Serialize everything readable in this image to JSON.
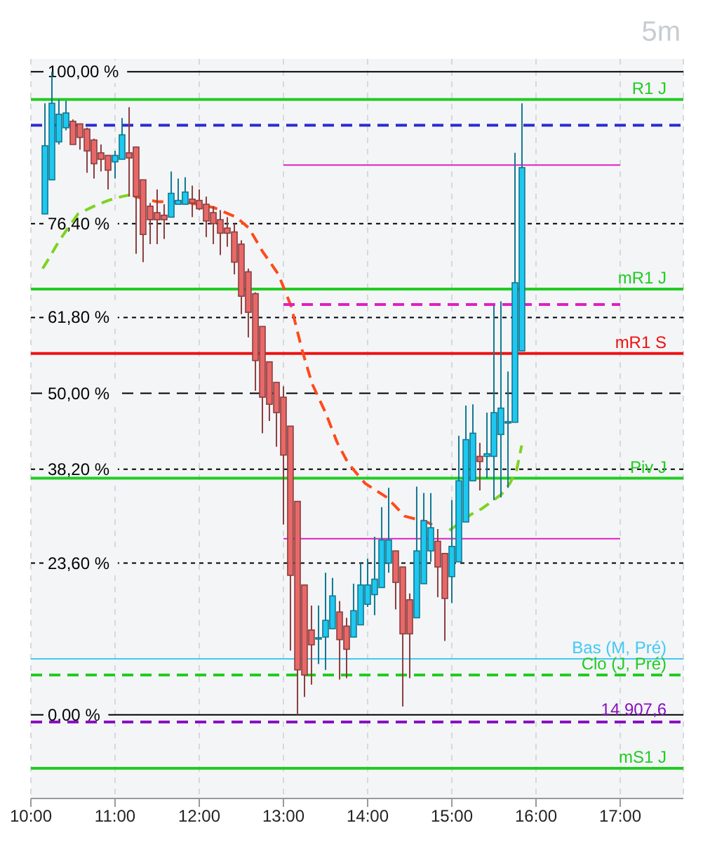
{
  "chart_data": {
    "type": "candlestick",
    "title": "5m",
    "tick_labels": "x",
    "grid": "x",
    "marker": "none",
    "xlim": [
      10,
      17.75
    ],
    "ylim": [
      -13,
      102
    ],
    "xticks": [
      {
        "value": 10,
        "label": "10:00"
      },
      {
        "value": 11,
        "label": "11:00"
      },
      {
        "value": 12,
        "label": "12:00"
      },
      {
        "value": 13,
        "label": "13:00"
      },
      {
        "value": 14,
        "label": "14:00"
      },
      {
        "value": 15,
        "label": "15:00"
      },
      {
        "value": 16,
        "label": "16:00"
      },
      {
        "value": 17,
        "label": "17:00"
      }
    ],
    "series": [
      {
        "type": "line",
        "color": "#7ed321",
        "line_style": "dashed",
        "x": [
          10.14,
          10.22,
          10.33,
          10.44,
          10.56,
          10.75,
          10.92,
          11.08,
          11.19,
          13,
          14.97,
          15.09,
          15.22,
          15.36,
          15.59,
          15.69,
          15.77,
          15.83
        ],
        "values": [
          69.4,
          71.1,
          73.6,
          75.7,
          77.9,
          79.1,
          80,
          80.6,
          80.9,
          null,
          28.7,
          29.8,
          31.1,
          32.1,
          34.3,
          36,
          38.1,
          41.9
        ]
      },
      {
        "type": "line",
        "color": "#ff4a1a",
        "line_style": "dashed",
        "x": [
          11.23,
          11.5,
          11.81,
          12.17,
          12.44,
          12.59,
          12.75,
          12.94,
          13.09,
          13.22,
          13.34,
          13.5,
          13.64,
          13.77,
          13.97,
          14.23,
          14.44,
          14.7,
          14.84
        ],
        "values": [
          80.6,
          79.8,
          79.8,
          78.9,
          77.4,
          75.7,
          72.1,
          68.5,
          63.6,
          56.8,
          51.5,
          47,
          42.3,
          39.1,
          36,
          33.8,
          30.9,
          30,
          29.1
        ]
      },
      {
        "type": "line",
        "color": "#e020c0",
        "line_style": "solid",
        "x": [
          13,
          17
        ],
        "values": [
          85.5,
          85.5
        ]
      },
      {
        "type": "line",
        "color": "#e020c0",
        "line_style": "dashed",
        "x": [
          13,
          17
        ],
        "values": [
          63.8,
          63.8
        ]
      },
      {
        "type": "line",
        "color": "#e020c0",
        "line_style": "solid",
        "x": [
          13,
          17
        ],
        "values": [
          27.4,
          27.4
        ]
      },
      {
        "color": "#1ec8f0",
        "x": [
          10.167,
          10.25,
          10.333,
          10.417,
          11,
          11.083,
          11.667,
          11.75,
          11.833,
          13.417,
          13.5,
          13.583,
          13.833,
          13.917,
          14,
          14.083,
          14.167,
          14.25,
          14.583,
          14.667,
          14.75,
          15,
          15.083,
          15.167,
          15.25,
          15.417,
          15.5,
          15.583,
          15.667,
          15.75,
          15.833
        ],
        "ohlc": [
          [
            77.9,
            95.1,
            77.9,
            88.5
          ],
          [
            83.2,
            100,
            83.2,
            95.1
          ],
          [
            89.1,
            95.7,
            88.7,
            93.4
          ],
          [
            91.3,
            95.5,
            90.9,
            93.6
          ],
          [
            86,
            87.7,
            83.4,
            87
          ],
          [
            86.4,
            92.8,
            86.4,
            90.2
          ],
          [
            77.4,
            84.5,
            77.4,
            81.1
          ],
          [
            79.4,
            83.4,
            79.4,
            80
          ],
          [
            79.4,
            83.6,
            79.4,
            81.3
          ],
          [
            11.8,
            17,
            7.9,
            12
          ],
          [
            12.1,
            22.1,
            7,
            14.7
          ],
          [
            13.4,
            21.3,
            13.4,
            18.5
          ],
          [
            12.1,
            20.4,
            12.1,
            16.2
          ],
          [
            14,
            23.6,
            14,
            20.2
          ],
          [
            17.2,
            24.3,
            16.8,
            20.2
          ],
          [
            18.7,
            27.7,
            15.5,
            21.1
          ],
          [
            19.8,
            32.3,
            19.8,
            27.2
          ],
          [
            23.6,
            35.3,
            22.1,
            27.2
          ],
          [
            15.1,
            35.5,
            15.1,
            25.5
          ],
          [
            20.4,
            34.5,
            20.4,
            30.2
          ],
          [
            25.5,
            34.5,
            23.8,
            29.1
          ],
          [
            21.5,
            33.4,
            17.4,
            26.2
          ],
          [
            23.8,
            43.4,
            23.8,
            36.4
          ],
          [
            30,
            48.1,
            30,
            42.8
          ],
          [
            36.4,
            48.3,
            36.4,
            43.8
          ],
          [
            40.2,
            47,
            36.8,
            40.6
          ],
          [
            40.2,
            63.6,
            33.4,
            47
          ],
          [
            43.6,
            64.3,
            33.8,
            47.7
          ],
          [
            45.4,
            53.4,
            35.3,
            45.6
          ],
          [
            45.5,
            87.4,
            45.5,
            67.2
          ],
          [
            56.6,
            95.1,
            56.6,
            85.1
          ]
        ]
      },
      {
        "color": "#e86868",
        "x": [
          10.5,
          10.583,
          10.667,
          10.75,
          10.833,
          10.917,
          11.167,
          11.25,
          11.333,
          11.417,
          11.5,
          11.583,
          11.917,
          12,
          12.083,
          12.167,
          12.25,
          12.333,
          12.417,
          12.5,
          12.583,
          12.667,
          12.75,
          12.833,
          12.917,
          13,
          13.083,
          13.167,
          13.25,
          13.333,
          13.667,
          13.75,
          14.333,
          14.417,
          14.5,
          14.833,
          14.917,
          15.333
        ],
        "ohlc": [
          [
            92.3,
            92.6,
            88.7,
            88.7
          ],
          [
            91.9,
            91.9,
            87.9,
            89.8
          ],
          [
            91.1,
            91.3,
            84.3,
            87.7
          ],
          [
            89.4,
            89.6,
            83.4,
            85.7
          ],
          [
            87.4,
            88.7,
            84.5,
            86.4
          ],
          [
            87,
            87,
            81.7,
            84.7
          ],
          [
            87.4,
            94.5,
            80.6,
            86.6
          ],
          [
            88.3,
            88.3,
            71.7,
            80.6
          ],
          [
            83.2,
            83.2,
            70.4,
            74.7
          ],
          [
            79.1,
            79.6,
            73.2,
            77
          ],
          [
            78.1,
            81.7,
            73.2,
            77
          ],
          [
            77.7,
            79.4,
            74,
            77
          ],
          [
            80.2,
            82.3,
            77.4,
            79.6
          ],
          [
            80,
            81.7,
            78.5,
            78.7
          ],
          [
            79.4,
            80.6,
            74.3,
            76.8
          ],
          [
            78.1,
            79.1,
            73.2,
            76.4
          ],
          [
            77,
            78.5,
            71.5,
            74.9
          ],
          [
            75.7,
            77.4,
            72.8,
            74.9
          ],
          [
            75.1,
            76.4,
            68.5,
            70.4
          ],
          [
            73.2,
            73.8,
            62.3,
            65.1
          ],
          [
            68.9,
            69.4,
            58.7,
            62.6
          ],
          [
            65.5,
            65.7,
            50.4,
            55.1
          ],
          [
            60.4,
            60.4,
            43.8,
            49.4
          ],
          [
            54.9,
            54.9,
            45.7,
            48.3
          ],
          [
            51.7,
            51.7,
            41.7,
            47
          ],
          [
            49.4,
            51.1,
            29.6,
            40.4
          ],
          [
            44.9,
            44.9,
            10,
            21.7
          ],
          [
            33.2,
            33.2,
            0,
            7
          ],
          [
            20.2,
            20.2,
            2.8,
            6.2
          ],
          [
            13.2,
            17,
            4.7,
            10.9
          ],
          [
            16,
            17.7,
            5.5,
            11.7
          ],
          [
            13.8,
            15.1,
            5.7,
            10.2
          ],
          [
            25.5,
            25.5,
            16.4,
            20.6
          ],
          [
            23,
            23,
            1.3,
            12.6
          ],
          [
            17.9,
            18.9,
            5.7,
            12.6
          ],
          [
            27,
            28.9,
            18.3,
            23
          ],
          [
            25.1,
            25.1,
            11.5,
            18.1
          ],
          [
            40.2,
            42.3,
            34.9,
            39.4
          ]
        ]
      }
    ],
    "ref_lines": [
      {
        "axis": "y",
        "value": 100,
        "label": "100,00 %",
        "color": "#000000",
        "line_style": "solid"
      },
      {
        "axis": "y",
        "value": 95.7,
        "label": "R1 J",
        "color": "#22cc22",
        "line_style": "solid"
      },
      {
        "axis": "y",
        "value": 91.7,
        "color": "#2a2ad0",
        "line_style": "dashed"
      },
      {
        "axis": "y",
        "value": 76.4,
        "label": "76,40 %",
        "color": "#000000",
        "line_style": "dotted"
      },
      {
        "axis": "y",
        "value": 66.2,
        "label": "mR1 J",
        "color": "#22cc22",
        "line_style": "solid"
      },
      {
        "axis": "y",
        "value": 61.8,
        "label": "61,80 %",
        "color": "#000000",
        "line_style": "dotted"
      },
      {
        "axis": "y",
        "value": 56.2,
        "label": "mR1 S",
        "color": "#ee1111",
        "line_style": "solid"
      },
      {
        "axis": "y",
        "value": 50,
        "label": "50,00 %",
        "color": "#000000",
        "line_style": "dashed"
      },
      {
        "axis": "y",
        "value": 38.2,
        "label": "38,20 %",
        "color": "#000000",
        "line_style": "dotted"
      },
      {
        "axis": "y",
        "value": 36.8,
        "label": "Piv J",
        "color": "#22cc22",
        "line_style": "solid"
      },
      {
        "axis": "y",
        "value": 23.6,
        "label": "23,60 %",
        "color": "#000000",
        "line_style": "dotted"
      },
      {
        "axis": "y",
        "value": 8.7,
        "label": "Bas (M, Pré)",
        "color": "#44c8f4",
        "line_style": "solid"
      },
      {
        "axis": "y",
        "value": 6.2,
        "label": "Clo (J, Pré)",
        "color": "#22cc22",
        "line_style": "dashed"
      },
      {
        "axis": "y",
        "value": 0,
        "label": "0,00 %",
        "color": "#000000",
        "line_style": "solid"
      },
      {
        "axis": "y",
        "value": -1.1,
        "color": "#8a10c0",
        "line_style": "dashed"
      },
      {
        "axis": "y",
        "value": -8.3,
        "label": "mS1 J",
        "color": "#22cc22",
        "line_style": "solid"
      }
    ],
    "annotations": [
      "14 907,6"
    ]
  }
}
